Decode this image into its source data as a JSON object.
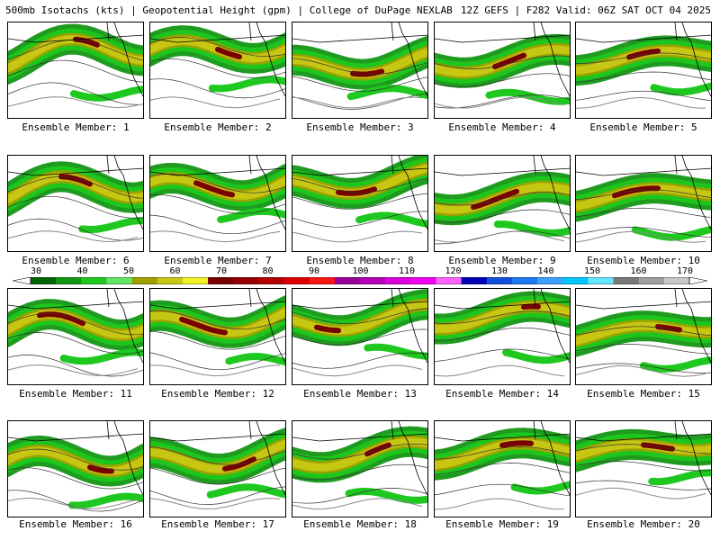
{
  "header": {
    "title": "500mb Isotachs (kts) | Geopotential Height (gpm) | College of DuPage NEXLAB",
    "run_info": "12Z GEFS | F282 Valid: 06Z SAT OCT 04 2025"
  },
  "colorbar": {
    "labels": [
      "30",
      "40",
      "50",
      "60",
      "70",
      "80",
      "90",
      "100",
      "110",
      "120",
      "130",
      "140",
      "150",
      "160",
      "170"
    ],
    "colors": [
      "#006400",
      "#139613",
      "#1ec81e",
      "#64e664",
      "#a0a000",
      "#c8c814",
      "#f0f028",
      "#780000",
      "#960000",
      "#b40000",
      "#dc0000",
      "#fa1414",
      "#960096",
      "#b400b4",
      "#dc00dc",
      "#f000f0",
      "#ff64ff",
      "#0000b4",
      "#1450dc",
      "#1e78f0",
      "#3ca0ff",
      "#00c8ff",
      "#64e6ff",
      "#787878",
      "#a0a0a0",
      "#c8c8c8"
    ]
  },
  "members": [
    {
      "label": "Ensemble Member: 1"
    },
    {
      "label": "Ensemble Member: 2"
    },
    {
      "label": "Ensemble Member: 3"
    },
    {
      "label": "Ensemble Member: 4"
    },
    {
      "label": "Ensemble Member: 5"
    },
    {
      "label": "Ensemble Member: 6"
    },
    {
      "label": "Ensemble Member: 7"
    },
    {
      "label": "Ensemble Member: 8"
    },
    {
      "label": "Ensemble Member: 9"
    },
    {
      "label": "Ensemble Member: 10"
    },
    {
      "label": "Ensemble Member: 11"
    },
    {
      "label": "Ensemble Member: 12"
    },
    {
      "label": "Ensemble Member: 13"
    },
    {
      "label": "Ensemble Member: 14"
    },
    {
      "label": "Ensemble Member: 15"
    },
    {
      "label": "Ensemble Member: 16"
    },
    {
      "label": "Ensemble Member: 17"
    },
    {
      "label": "Ensemble Member: 18"
    },
    {
      "label": "Ensemble Member: 19"
    },
    {
      "label": "Ensemble Member: 20"
    }
  ]
}
